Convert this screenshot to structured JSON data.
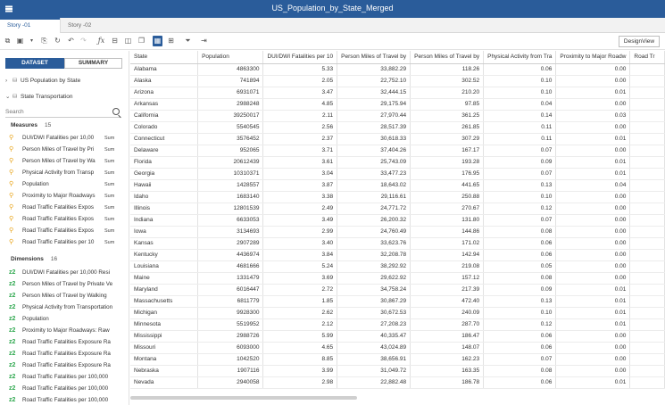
{
  "app": {
    "title": "US_Population_by_State_Merged"
  },
  "tabs": [
    {
      "label": "Story -01"
    },
    {
      "label": "Story -02"
    }
  ],
  "toolbar": {
    "design_view_label": "DesignView"
  },
  "panel": {
    "tab_dataset": "DATASET",
    "tab_summary": "SUMMARY",
    "tree": [
      {
        "label": "US Population by State"
      },
      {
        "label": "State Transportation"
      }
    ],
    "search_placeholder": "Search",
    "measures_label": "Measures",
    "measures_count": "15",
    "measures": [
      {
        "name": "DUI/DWI Fatalities per 10,00",
        "agg": "Sum"
      },
      {
        "name": "Person Miles of Travel by Pri",
        "agg": "Sum"
      },
      {
        "name": "Person Miles of Travel by Wa",
        "agg": "Sum"
      },
      {
        "name": "Physical Activity from Transp",
        "agg": "Sum"
      },
      {
        "name": "Population",
        "agg": "Sum"
      },
      {
        "name": "Proximity to Major Roadways",
        "agg": "Sum"
      },
      {
        "name": "Road Traffic Fatalities Expos",
        "agg": "Sum"
      },
      {
        "name": "Road Traffic Fatalities Expos",
        "agg": "Sum"
      },
      {
        "name": "Road Traffic Fatalities Expos",
        "agg": "Sum"
      },
      {
        "name": "Road Traffic Fatalities per 10",
        "agg": "Sum"
      }
    ],
    "dimensions_label": "Dimensions",
    "dimensions_count": "16",
    "dimensions": [
      "DUI/DWI Fatalities per 10,000 Resi",
      "Person Miles of Travel by Private Ve",
      "Person Miles of Travel by Walking",
      "Physical Activity from Transportation",
      "Population",
      "Proximity to Major Roadways: Raw",
      "Road Traffic Fatalities Exposure Ra",
      "Road Traffic Fatalities Exposure Ra",
      "Road Traffic Fatalities Exposure Ra",
      "Road Traffic Fatalities per 100,000",
      "Road Traffic Fatalities per 100,000",
      "Road Traffic Fatalities per 100,000"
    ]
  },
  "grid": {
    "columns": [
      "State",
      "Population",
      "DUI/DWI Fatalities per 10",
      "Person Miles of Travel by",
      "Person Miles of Travel by",
      "Physical Activity from Tra",
      "Proximity to Major Roadw",
      "Road Tr"
    ],
    "rows": [
      [
        "Alabama",
        "4863300",
        "5.33",
        "33,882.29",
        "118.26",
        "0.06",
        "0.00"
      ],
      [
        "Alaska",
        "741894",
        "2.05",
        "22,752.10",
        "302.52",
        "0.10",
        "0.00"
      ],
      [
        "Arizona",
        "6931071",
        "3.47",
        "32,444.15",
        "210.20",
        "0.10",
        "0.01"
      ],
      [
        "Arkansas",
        "2988248",
        "4.85",
        "29,175.94",
        "97.85",
        "0.04",
        "0.00"
      ],
      [
        "California",
        "39250017",
        "2.11",
        "27,970.44",
        "361.25",
        "0.14",
        "0.03"
      ],
      [
        "Colorado",
        "5540545",
        "2.56",
        "28,517.39",
        "261.85",
        "0.11",
        "0.00"
      ],
      [
        "Connecticut",
        "3576452",
        "2.37",
        "30,618.33",
        "307.29",
        "0.11",
        "0.01"
      ],
      [
        "Delaware",
        "952065",
        "3.71",
        "37,404.26",
        "167.17",
        "0.07",
        "0.00"
      ],
      [
        "Florida",
        "20612439",
        "3.61",
        "25,743.09",
        "193.28",
        "0.09",
        "0.01"
      ],
      [
        "Georgia",
        "10310371",
        "3.04",
        "33,477.23",
        "176.95",
        "0.07",
        "0.01"
      ],
      [
        "Hawaii",
        "1428557",
        "3.87",
        "18,643.02",
        "441.65",
        "0.13",
        "0.04"
      ],
      [
        "Idaho",
        "1683140",
        "3.38",
        "29,116.61",
        "250.88",
        "0.10",
        "0.00"
      ],
      [
        "Illinois",
        "12801539",
        "2.49",
        "24,771.72",
        "270.67",
        "0.12",
        "0.00"
      ],
      [
        "Indiana",
        "6633053",
        "3.49",
        "26,200.32",
        "131.80",
        "0.07",
        "0.00"
      ],
      [
        "Iowa",
        "3134693",
        "2.99",
        "24,760.49",
        "144.86",
        "0.08",
        "0.00"
      ],
      [
        "Kansas",
        "2907289",
        "3.40",
        "33,623.76",
        "171.02",
        "0.06",
        "0.00"
      ],
      [
        "Kentucky",
        "4436974",
        "3.84",
        "32,208.78",
        "142.94",
        "0.06",
        "0.00"
      ],
      [
        "Louisiana",
        "4681666",
        "5.24",
        "38,292.92",
        "219.08",
        "0.05",
        "0.00"
      ],
      [
        "Maine",
        "1331479",
        "3.69",
        "29,622.92",
        "157.12",
        "0.08",
        "0.00"
      ],
      [
        "Maryland",
        "6016447",
        "2.72",
        "34,758.24",
        "217.39",
        "0.09",
        "0.01"
      ],
      [
        "Massachusetts",
        "6811779",
        "1.85",
        "30,867.29",
        "472.40",
        "0.13",
        "0.01"
      ],
      [
        "Michigan",
        "9928300",
        "2.62",
        "30,672.53",
        "240.09",
        "0.10",
        "0.01"
      ],
      [
        "Minnesota",
        "5519952",
        "2.12",
        "27,208.23",
        "287.70",
        "0.12",
        "0.01"
      ],
      [
        "Mississippi",
        "2988726",
        "5.99",
        "40,335.47",
        "186.47",
        "0.06",
        "0.00"
      ],
      [
        "Missouri",
        "6093000",
        "4.65",
        "43,024.89",
        "148.07",
        "0.06",
        "0.00"
      ],
      [
        "Montana",
        "1042520",
        "8.85",
        "38,656.91",
        "162.23",
        "0.07",
        "0.00"
      ],
      [
        "Nebraska",
        "1907116",
        "3.99",
        "31,049.72",
        "163.35",
        "0.08",
        "0.00"
      ],
      [
        "Nevada",
        "2940058",
        "2.98",
        "22,882.48",
        "186.78",
        "0.06",
        "0.01"
      ]
    ]
  }
}
